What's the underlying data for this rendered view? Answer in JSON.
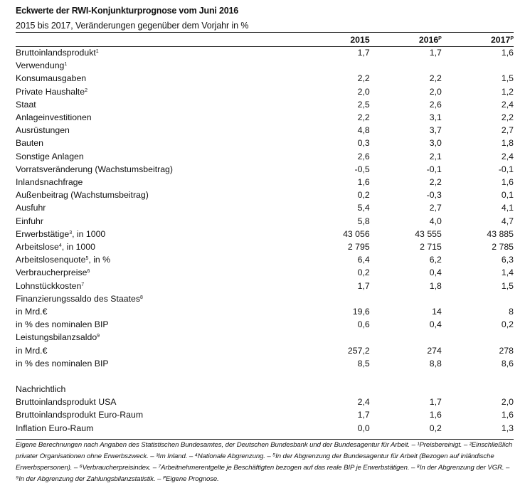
{
  "title": "Eckwerte der RWI-Konjunkturprognose vom Juni 2016",
  "subtitle": "2015 bis 2017, Veränderungen gegenüber dem Vorjahr in %",
  "columns": [
    {
      "label": "2015",
      "sup": ""
    },
    {
      "label": "2016",
      "sup": "P"
    },
    {
      "label": "2017",
      "sup": "P"
    }
  ],
  "rows": [
    {
      "label": "Bruttoinlandsprodukt",
      "sup": "1",
      "indent": 0,
      "values": [
        "1,7",
        "1,7",
        "1,6"
      ]
    },
    {
      "label": "Verwendung",
      "sup": "1",
      "indent": 0,
      "values": [
        "",
        "",
        ""
      ]
    },
    {
      "label": "Konsumausgaben",
      "sup": "",
      "indent": 1,
      "values": [
        "2,2",
        "2,2",
        "1,5"
      ]
    },
    {
      "label": "Private Haushalte",
      "sup": "2",
      "indent": 2,
      "values": [
        "2,0",
        "2,0",
        "1,2"
      ]
    },
    {
      "label": "Staat",
      "sup": "",
      "indent": 2,
      "values": [
        "2,5",
        "2,6",
        "2,4"
      ]
    },
    {
      "label": "Anlageinvestitionen",
      "sup": "",
      "indent": 1,
      "values": [
        "2,2",
        "3,1",
        "2,2"
      ]
    },
    {
      "label": "Ausrüstungen",
      "sup": "",
      "indent": 2,
      "values": [
        "4,8",
        "3,7",
        "2,7"
      ]
    },
    {
      "label": "Bauten",
      "sup": "",
      "indent": 2,
      "values": [
        "0,3",
        "3,0",
        "1,8"
      ]
    },
    {
      "label": "Sonstige Anlagen",
      "sup": "",
      "indent": 2,
      "values": [
        "2,6",
        "2,1",
        "2,4"
      ]
    },
    {
      "label": "Vorratsveränderung (Wachstumsbeitrag)",
      "sup": "",
      "indent": 1,
      "values": [
        "-0,5",
        "-0,1",
        "-0,1"
      ]
    },
    {
      "label": "Inlandsnachfrage",
      "sup": "",
      "indent": 1,
      "values": [
        "1,6",
        "2,2",
        "1,6"
      ]
    },
    {
      "label": "Außenbeitrag (Wachstumsbeitrag)",
      "sup": "",
      "indent": 1,
      "values": [
        "0,2",
        "-0,3",
        "0,1"
      ]
    },
    {
      "label": "Ausfuhr",
      "sup": "",
      "indent": 2,
      "values": [
        "5,4",
        "2,7",
        "4,1"
      ]
    },
    {
      "label": "Einfuhr",
      "sup": "",
      "indent": 2,
      "values": [
        "5,8",
        "4,0",
        "4,7"
      ]
    },
    {
      "label": "Erwerbstätige",
      "sup": "3",
      "suffix": ", in 1000",
      "indent": 0,
      "values": [
        "43 056",
        "43 555",
        "43 885"
      ]
    },
    {
      "label": "Arbeitslose",
      "sup": "4",
      "suffix": ", in 1000",
      "indent": 0,
      "values": [
        "2 795",
        "2 715",
        "2 785"
      ]
    },
    {
      "label": "Arbeitslosenquote",
      "sup": "5",
      "suffix": ", in %",
      "indent": 0,
      "values": [
        "6,4",
        "6,2",
        "6,3"
      ]
    },
    {
      "label": "Verbraucherpreise",
      "sup": "6",
      "indent": 0,
      "values": [
        "0,2",
        "0,4",
        "1,4"
      ]
    },
    {
      "label": "Lohnstückkosten",
      "sup": "7",
      "indent": 0,
      "values": [
        "1,7",
        "1,8",
        "1,5"
      ]
    },
    {
      "label": "Finanzierungssaldo des Staates",
      "sup": "8",
      "indent": 0,
      "values": [
        "",
        "",
        ""
      ]
    },
    {
      "label": "in Mrd.€",
      "sup": "",
      "indent": 2,
      "values": [
        "19,6",
        "14",
        "8"
      ]
    },
    {
      "label": "in % des nominalen BIP",
      "sup": "",
      "indent": 2,
      "values": [
        "0,6",
        "0,4",
        "0,2"
      ]
    },
    {
      "label": "Leistungsbilanzsaldo",
      "sup": "9",
      "indent": 0,
      "values": [
        "",
        "",
        ""
      ]
    },
    {
      "label": "in Mrd.€",
      "sup": "",
      "indent": 2,
      "values": [
        "257,2",
        "274",
        "278"
      ]
    },
    {
      "label": "in % des nominalen BIP",
      "sup": "",
      "indent": 2,
      "values": [
        "8,5",
        "8,8",
        "8,6"
      ]
    }
  ],
  "memo_title": "Nachrichtlich",
  "memo_rows": [
    {
      "label": "Bruttoinlandsprodukt USA",
      "values": [
        "2,4",
        "1,7",
        "2,0"
      ]
    },
    {
      "label": "Bruttoinlandsprodukt Euro-Raum",
      "values": [
        "1,7",
        "1,6",
        "1,6"
      ]
    },
    {
      "label": "Inflation Euro-Raum",
      "values": [
        "0,0",
        "0,2",
        "1,3"
      ]
    }
  ],
  "footnote": "Eigene Berechnungen nach Angaben des Statistischen Bundesamtes, der Deutschen Bundesbank und der Bundesagentur für Arbeit. – ¹Preisbereinigt. – ²Einschließlich privater Organisationen ohne Erwerbszweck. – ³Im Inland. – ⁴Nationale Abgrenzung. – ⁵In der Abgrenzung der Bundesagentur für Arbeit (Bezogen auf inländische Erwerbspersonen). – ⁶Verbraucherpreisindex. – ⁷Arbeitnehmerentgelte je Beschäftigten bezogen auf das reale BIP je Erwerbstätigen. – ⁸In der Abgrenzung der VGR. – ⁹In der Abgrenzung der Zahlungsbilanzstatistik. – ᴾEigene Prognose."
}
